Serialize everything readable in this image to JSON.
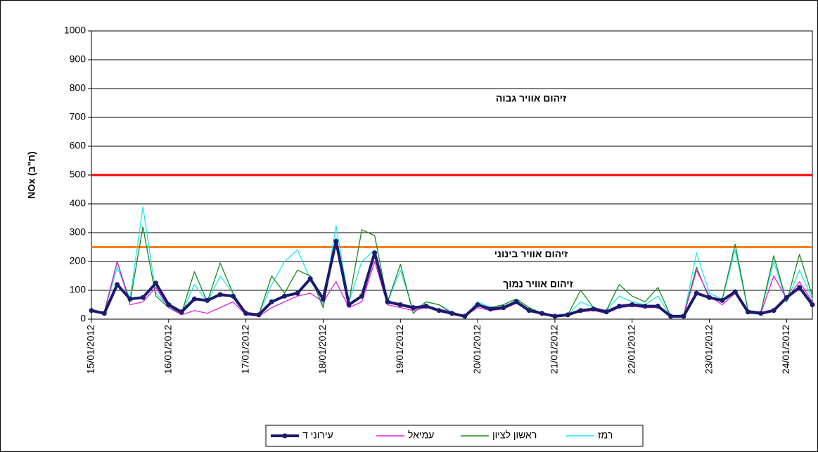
{
  "chart_data": {
    "type": "line",
    "y_label": "NOx (ח\"ב)",
    "categories": [
      "15/01/2012",
      null,
      null,
      null,
      null,
      null,
      "16/01/2012",
      null,
      null,
      null,
      null,
      null,
      "17/01/2012",
      null,
      null,
      null,
      null,
      null,
      "18/01/2012",
      null,
      null,
      null,
      null,
      null,
      "19/01/2012",
      null,
      null,
      null,
      null,
      null,
      "20/01/2012",
      null,
      null,
      null,
      null,
      null,
      "21/01/2012",
      null,
      null,
      null,
      null,
      null,
      "22/01/2012",
      null,
      null,
      null,
      null,
      null,
      "23/01/2012",
      null,
      null,
      null,
      null,
      null,
      "24/01/2012",
      null,
      null
    ],
    "series": [
      {
        "name": "עירוני ד",
        "color": "#1a1a6e",
        "markers": true,
        "values": [
          30,
          20,
          120,
          70,
          75,
          125,
          50,
          25,
          70,
          65,
          85,
          80,
          20,
          15,
          60,
          80,
          90,
          140,
          70,
          270,
          50,
          80,
          230,
          60,
          50,
          40,
          45,
          30,
          20,
          10,
          50,
          35,
          40,
          60,
          30,
          20,
          10,
          15,
          30,
          35,
          25,
          45,
          50,
          45,
          45,
          10,
          10,
          90,
          75,
          65,
          95,
          25,
          20,
          30,
          75,
          110,
          50
        ]
      },
      {
        "name": "עמיאל",
        "color": "#e020e0",
        "markers": false,
        "values": [
          30,
          20,
          200,
          50,
          60,
          110,
          40,
          15,
          30,
          20,
          40,
          60,
          15,
          10,
          40,
          60,
          80,
          90,
          60,
          130,
          40,
          60,
          200,
          50,
          40,
          30,
          40,
          35,
          25,
          10,
          40,
          30,
          35,
          55,
          30,
          15,
          10,
          15,
          25,
          30,
          20,
          40,
          45,
          40,
          40,
          10,
          10,
          170,
          80,
          50,
          90,
          20,
          20,
          150,
          70,
          130,
          60
        ]
      },
      {
        "name": "ראשון לציון",
        "color": "#1a8a1a",
        "markers": false,
        "values": [
          30,
          25,
          200,
          60,
          320,
          80,
          40,
          20,
          165,
          60,
          195,
          90,
          20,
          15,
          150,
          90,
          170,
          150,
          40,
          280,
          60,
          310,
          290,
          60,
          190,
          20,
          60,
          50,
          20,
          10,
          50,
          40,
          50,
          70,
          40,
          20,
          10,
          15,
          100,
          40,
          30,
          120,
          80,
          60,
          110,
          10,
          15,
          180,
          70,
          70,
          260,
          30,
          25,
          220,
          60,
          225,
          80
        ]
      },
      {
        "name": "רמז",
        "color": "#20e8f0",
        "markers": false,
        "values": [
          30,
          25,
          180,
          70,
          390,
          90,
          45,
          20,
          120,
          60,
          150,
          90,
          20,
          15,
          120,
          200,
          240,
          140,
          50,
          325,
          60,
          200,
          240,
          60,
          170,
          30,
          60,
          50,
          25,
          10,
          60,
          40,
          50,
          70,
          40,
          20,
          10,
          15,
          60,
          40,
          30,
          80,
          60,
          50,
          80,
          10,
          10,
          230,
          90,
          70,
          240,
          30,
          25,
          200,
          60,
          170,
          70
        ]
      }
    ],
    "thresholds": [
      {
        "value": 500,
        "color": "#ff0000",
        "label": "זיהום אוויר גבוה"
      },
      {
        "value": 250,
        "color": "#ff7f1a",
        "label": "זיהום אוויר בינוני"
      }
    ],
    "low_label": {
      "label": "זיהום אוויר נמוך",
      "color": "#1a8a1a"
    },
    "ylim": [
      0,
      1000
    ],
    "yticks": [
      0,
      100,
      200,
      300,
      400,
      500,
      600,
      700,
      800,
      900,
      1000
    ],
    "grid": true,
    "legend": "bottom"
  }
}
